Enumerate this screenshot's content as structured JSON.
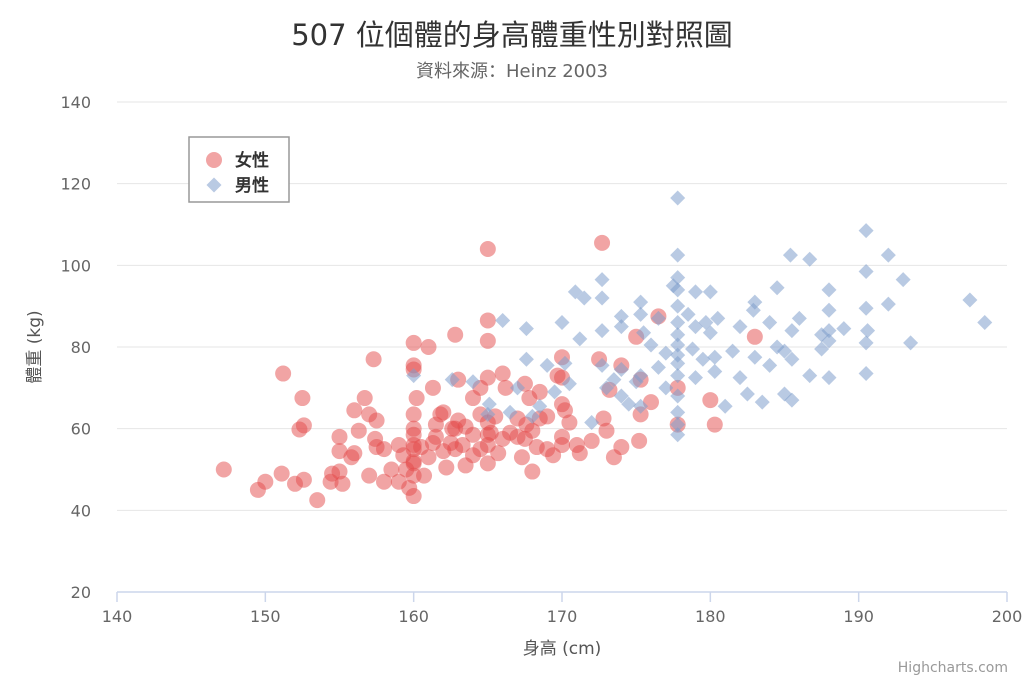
{
  "chart_data": {
    "type": "scatter",
    "title": "507 位個體的身高體重性別對照圖",
    "subtitle": "資料來源：Heinz 2003",
    "xlabel": "身高 (cm)",
    "ylabel": "體重 (kg)",
    "xlim": [
      140,
      200
    ],
    "ylim": [
      20,
      140
    ],
    "xticks": [
      140,
      150,
      160,
      170,
      180,
      190,
      200
    ],
    "yticks": [
      20,
      40,
      60,
      80,
      100,
      120,
      140
    ],
    "grid": "horizontal",
    "legend_position": "top-left",
    "series": [
      {
        "name": "女性",
        "marker": "circle",
        "color": "#e34a4a",
        "points": [
          [
            147.2,
            50.0
          ],
          [
            149.5,
            45.0
          ],
          [
            150.0,
            47.0
          ],
          [
            151.1,
            49.0
          ],
          [
            151.2,
            73.5
          ],
          [
            152.0,
            46.5
          ],
          [
            152.3,
            59.8
          ],
          [
            152.5,
            67.5
          ],
          [
            152.6,
            60.8
          ],
          [
            152.6,
            47.5
          ],
          [
            153.5,
            42.5
          ],
          [
            154.4,
            47.0
          ],
          [
            154.5,
            49.0
          ],
          [
            155.0,
            58.0
          ],
          [
            155.0,
            54.5
          ],
          [
            155.2,
            46.5
          ],
          [
            155.0,
            49.5
          ],
          [
            155.8,
            53.0
          ],
          [
            156.0,
            64.5
          ],
          [
            156.0,
            54.0
          ],
          [
            156.3,
            59.5
          ],
          [
            156.7,
            67.5
          ],
          [
            157.0,
            48.5
          ],
          [
            157.0,
            63.5
          ],
          [
            157.3,
            77.0
          ],
          [
            157.5,
            55.5
          ],
          [
            157.5,
            62.0
          ],
          [
            157.4,
            57.5
          ],
          [
            158.0,
            47.0
          ],
          [
            158.0,
            55.0
          ],
          [
            158.5,
            50.0
          ],
          [
            159.0,
            56.0
          ],
          [
            159.0,
            47.0
          ],
          [
            159.3,
            53.5
          ],
          [
            159.5,
            50.0
          ],
          [
            159.7,
            45.5
          ],
          [
            160.0,
            51.5
          ],
          [
            160.0,
            55.0
          ],
          [
            160.0,
            43.5
          ],
          [
            160.0,
            58.5
          ],
          [
            160.0,
            63.5
          ],
          [
            160.0,
            75.5
          ],
          [
            160.0,
            81.0
          ],
          [
            160.0,
            48.5
          ],
          [
            160.0,
            52.0
          ],
          [
            160.2,
            67.5
          ],
          [
            160.0,
            56.0
          ],
          [
            160.0,
            60.0
          ],
          [
            160.0,
            74.5
          ],
          [
            160.5,
            55.5
          ],
          [
            160.7,
            48.5
          ],
          [
            161.0,
            80.0
          ],
          [
            161.0,
            53.0
          ],
          [
            161.3,
            70.0
          ],
          [
            161.3,
            56.5
          ],
          [
            161.5,
            61.0
          ],
          [
            161.5,
            58.0
          ],
          [
            161.8,
            63.5
          ],
          [
            162.0,
            64.0
          ],
          [
            162.0,
            54.5
          ],
          [
            162.2,
            50.5
          ],
          [
            162.5,
            56.5
          ],
          [
            162.6,
            60.0
          ],
          [
            162.8,
            83.0
          ],
          [
            162.8,
            55.0
          ],
          [
            162.8,
            60.0
          ],
          [
            163.0,
            72.0
          ],
          [
            163.0,
            62.0
          ],
          [
            163.3,
            56.0
          ],
          [
            163.5,
            51.0
          ],
          [
            163.5,
            60.5
          ],
          [
            164.0,
            58.5
          ],
          [
            164.0,
            67.5
          ],
          [
            164.0,
            53.5
          ],
          [
            164.5,
            63.5
          ],
          [
            164.5,
            70.0
          ],
          [
            164.5,
            55.0
          ],
          [
            165.0,
            104.0
          ],
          [
            165.0,
            86.5
          ],
          [
            165.0,
            81.5
          ],
          [
            165.0,
            72.5
          ],
          [
            165.0,
            61.5
          ],
          [
            165.0,
            56.0
          ],
          [
            165.0,
            51.5
          ],
          [
            165.0,
            58.5
          ],
          [
            165.2,
            59.0
          ],
          [
            165.5,
            63.0
          ],
          [
            165.7,
            54.0
          ],
          [
            166.0,
            73.5
          ],
          [
            166.0,
            57.5
          ],
          [
            166.2,
            70.0
          ],
          [
            166.5,
            59.0
          ],
          [
            167.0,
            62.5
          ],
          [
            167.0,
            58.0
          ],
          [
            167.3,
            53.0
          ],
          [
            167.5,
            57.5
          ],
          [
            167.5,
            71.0
          ],
          [
            167.6,
            61.0
          ],
          [
            167.8,
            67.5
          ],
          [
            168.0,
            49.5
          ],
          [
            168.0,
            59.5
          ],
          [
            168.3,
            55.5
          ],
          [
            168.5,
            62.5
          ],
          [
            168.5,
            69.0
          ],
          [
            169.0,
            63.0
          ],
          [
            169.0,
            55.0
          ],
          [
            169.4,
            53.5
          ],
          [
            169.7,
            73.0
          ],
          [
            170.0,
            58.0
          ],
          [
            170.0,
            72.5
          ],
          [
            170.0,
            66.0
          ],
          [
            170.0,
            77.5
          ],
          [
            170.0,
            56.0
          ],
          [
            170.2,
            64.5
          ],
          [
            170.5,
            61.5
          ],
          [
            171.0,
            56.0
          ],
          [
            171.2,
            54.0
          ],
          [
            172.0,
            57.0
          ],
          [
            172.5,
            77.0
          ],
          [
            172.7,
            105.5
          ],
          [
            172.8,
            62.5
          ],
          [
            173.0,
            59.5
          ],
          [
            173.2,
            69.5
          ],
          [
            173.5,
            53.0
          ],
          [
            174.0,
            55.5
          ],
          [
            174.0,
            75.5
          ],
          [
            175.0,
            82.5
          ],
          [
            175.2,
            57.0
          ],
          [
            175.3,
            63.5
          ],
          [
            175.3,
            72.0
          ],
          [
            176.0,
            66.5
          ],
          [
            176.5,
            87.5
          ],
          [
            177.8,
            61.0
          ],
          [
            177.8,
            70.0
          ],
          [
            180.0,
            67.0
          ],
          [
            180.3,
            61.0
          ],
          [
            183.0,
            82.5
          ]
        ]
      },
      {
        "name": "男性",
        "marker": "diamond",
        "color": "#7f9fcc",
        "points": [
          [
            160.0,
            73.0
          ],
          [
            162.6,
            72.0
          ],
          [
            164.0,
            71.5
          ],
          [
            165.0,
            63.5
          ],
          [
            165.1,
            66.0
          ],
          [
            166.0,
            86.5
          ],
          [
            166.5,
            64.0
          ],
          [
            167.0,
            70.0
          ],
          [
            167.6,
            84.5
          ],
          [
            167.6,
            77.0
          ],
          [
            168.0,
            63.0
          ],
          [
            168.5,
            65.5
          ],
          [
            169.0,
            75.5
          ],
          [
            169.5,
            69.0
          ],
          [
            170.0,
            86.0
          ],
          [
            170.2,
            76.0
          ],
          [
            170.5,
            71.0
          ],
          [
            170.9,
            93.5
          ],
          [
            171.2,
            82.0
          ],
          [
            171.5,
            92.0
          ],
          [
            172.0,
            61.5
          ],
          [
            172.7,
            96.5
          ],
          [
            172.7,
            92.0
          ],
          [
            172.7,
            75.5
          ],
          [
            172.7,
            84.0
          ],
          [
            173.0,
            70.0
          ],
          [
            173.5,
            72.0
          ],
          [
            174.0,
            87.5
          ],
          [
            174.0,
            68.0
          ],
          [
            174.0,
            85.0
          ],
          [
            174.0,
            74.5
          ],
          [
            174.5,
            66.0
          ],
          [
            175.0,
            71.5
          ],
          [
            175.3,
            91.0
          ],
          [
            175.3,
            88.0
          ],
          [
            175.3,
            73.0
          ],
          [
            175.3,
            65.5
          ],
          [
            175.5,
            83.5
          ],
          [
            176.0,
            80.5
          ],
          [
            176.5,
            87.0
          ],
          [
            176.5,
            75.0
          ],
          [
            177.0,
            78.5
          ],
          [
            177.0,
            70.0
          ],
          [
            177.5,
            95.0
          ],
          [
            177.8,
            116.5
          ],
          [
            177.8,
            102.5
          ],
          [
            177.8,
            97.0
          ],
          [
            177.8,
            94.0
          ],
          [
            177.8,
            90.0
          ],
          [
            177.8,
            86.0
          ],
          [
            177.8,
            83.0
          ],
          [
            177.8,
            80.5
          ],
          [
            177.8,
            78.0
          ],
          [
            177.8,
            76.0
          ],
          [
            177.8,
            73.0
          ],
          [
            177.8,
            68.0
          ],
          [
            177.8,
            64.0
          ],
          [
            177.8,
            61.0
          ],
          [
            177.8,
            58.5
          ],
          [
            178.5,
            88.0
          ],
          [
            178.8,
            79.5
          ],
          [
            179.0,
            93.5
          ],
          [
            179.0,
            72.5
          ],
          [
            179.0,
            85.0
          ],
          [
            179.5,
            77.0
          ],
          [
            179.7,
            86.0
          ],
          [
            180.0,
            93.5
          ],
          [
            180.0,
            83.5
          ],
          [
            180.3,
            77.5
          ],
          [
            180.3,
            74.0
          ],
          [
            180.5,
            87.0
          ],
          [
            181.0,
            65.5
          ],
          [
            181.5,
            79.0
          ],
          [
            182.0,
            85.0
          ],
          [
            182.0,
            72.5
          ],
          [
            182.5,
            68.5
          ],
          [
            182.9,
            89.0
          ],
          [
            183.0,
            77.5
          ],
          [
            183.0,
            91.0
          ],
          [
            183.5,
            66.5
          ],
          [
            184.0,
            86.0
          ],
          [
            184.0,
            75.5
          ],
          [
            184.5,
            80.0
          ],
          [
            184.5,
            94.5
          ],
          [
            185.0,
            79.0
          ],
          [
            185.0,
            68.5
          ],
          [
            185.4,
            102.5
          ],
          [
            185.5,
            84.0
          ],
          [
            185.5,
            77.0
          ],
          [
            185.5,
            67.0
          ],
          [
            186.0,
            87.0
          ],
          [
            186.7,
            101.5
          ],
          [
            186.7,
            73.0
          ],
          [
            187.5,
            83.0
          ],
          [
            187.5,
            79.5
          ],
          [
            188.0,
            94.0
          ],
          [
            188.0,
            84.0
          ],
          [
            188.0,
            72.5
          ],
          [
            188.0,
            89.0
          ],
          [
            188.0,
            81.5
          ],
          [
            189.0,
            84.5
          ],
          [
            190.5,
            108.5
          ],
          [
            190.5,
            98.5
          ],
          [
            190.5,
            89.5
          ],
          [
            190.5,
            81.0
          ],
          [
            190.5,
            73.5
          ],
          [
            190.6,
            84.0
          ],
          [
            192.0,
            102.5
          ],
          [
            192.0,
            90.5
          ],
          [
            193.0,
            96.5
          ],
          [
            193.5,
            81.0
          ],
          [
            197.5,
            91.5
          ],
          [
            198.5,
            86.0
          ]
        ]
      }
    ]
  },
  "credits": "Highcharts.com"
}
